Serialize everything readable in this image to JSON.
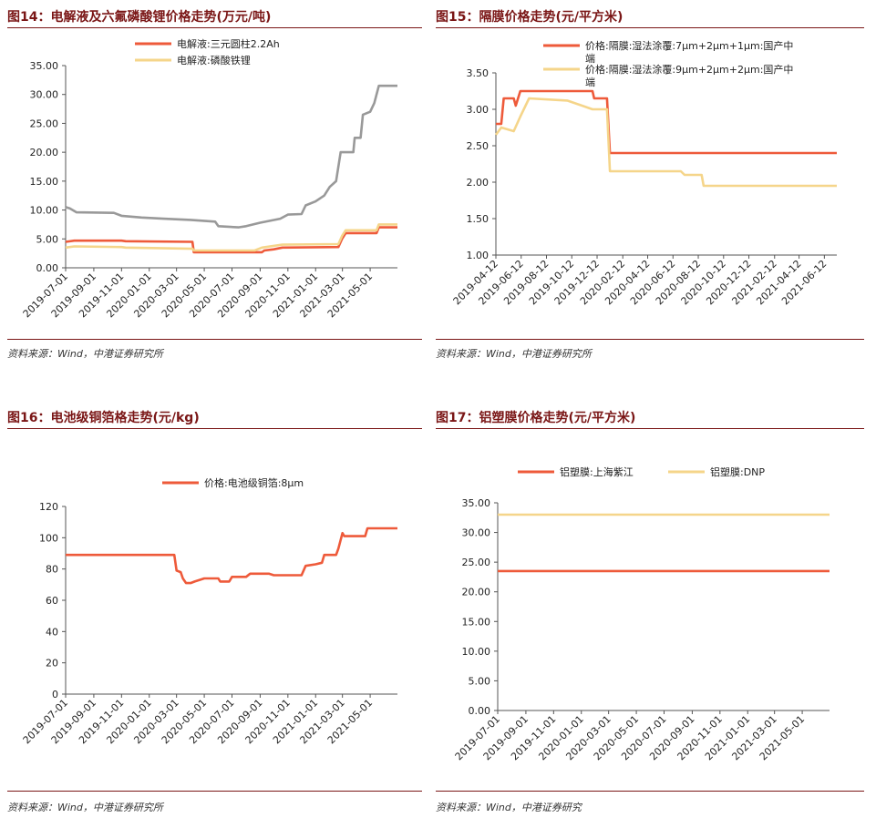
{
  "charts": [
    {
      "title": "图14：电解液及六氟磷酸锂价格走势(万元/吨)",
      "source": "资料来源：Wind，中港证券研究所"
    },
    {
      "title": "图15：隔膜价格走势(元/平方米)",
      "source": "资料来源：Wind，中港证券研究所"
    },
    {
      "title": "图16：电池级铜箔格走势(元/kg)",
      "source": "资料来源：Wind，中港证券研究所"
    },
    {
      "title": "图17：铝塑膜价格走势(元/平方米)",
      "source": "资料来源：Wind，中港证券研究"
    }
  ],
  "chart_data": [
    {
      "type": "line",
      "ylim": [
        0,
        35
      ],
      "yticks": [
        "0.00",
        "5.00",
        "10.00",
        "15.00",
        "20.00",
        "25.00",
        "30.00",
        "35.00"
      ],
      "xlim": [
        "2019-07-01",
        "2021-06-30"
      ],
      "xticks": [
        "2019-07-01",
        "2019-09-01",
        "2019-11-01",
        "2020-01-01",
        "2020-03-01",
        "2020-05-01",
        "2020-07-01",
        "2020-09-01",
        "2020-11-01",
        "2021-01-01",
        "2021-03-01",
        "2021-05-01"
      ],
      "legend_position": "top",
      "grid": false,
      "series": [
        {
          "name": "电解液:三元圆柱2.2Ah",
          "color": "#ee5a3a",
          "points": [
            [
              "2019-07-01",
              4.5
            ],
            [
              "2019-07-20",
              4.7
            ],
            [
              "2019-11-01",
              4.7
            ],
            [
              "2019-11-10",
              4.6
            ],
            [
              "2020-04-05",
              4.5
            ],
            [
              "2020-04-08",
              2.7
            ],
            [
              "2020-09-05",
              2.7
            ],
            [
              "2020-09-10",
              3.0
            ],
            [
              "2020-10-01",
              3.2
            ],
            [
              "2020-10-20",
              3.5
            ],
            [
              "2021-02-20",
              3.6
            ],
            [
              "2021-02-28",
              5.0
            ],
            [
              "2021-03-08",
              6.0
            ],
            [
              "2021-05-15",
              6.0
            ],
            [
              "2021-05-20",
              7.0
            ],
            [
              "2021-06-30",
              7.0
            ]
          ]
        },
        {
          "name": "电解液:磷酸铁锂",
          "color": "#f5d58a",
          "points": [
            [
              "2019-07-01",
              3.5
            ],
            [
              "2019-07-20",
              3.7
            ],
            [
              "2019-11-01",
              3.6
            ],
            [
              "2019-11-10",
              3.5
            ],
            [
              "2020-04-05",
              3.3
            ],
            [
              "2020-04-08",
              3.0
            ],
            [
              "2020-08-20",
              3.0
            ],
            [
              "2020-09-05",
              3.5
            ],
            [
              "2020-10-01",
              3.8
            ],
            [
              "2020-10-20",
              4.0
            ],
            [
              "2021-02-20",
              4.1
            ],
            [
              "2021-02-28",
              5.5
            ],
            [
              "2021-03-08",
              6.5
            ],
            [
              "2021-05-15",
              6.5
            ],
            [
              "2021-05-20",
              7.5
            ],
            [
              "2021-06-30",
              7.5
            ]
          ]
        },
        {
          "name": "",
          "color": "#999999",
          "points": [
            [
              "2019-07-01",
              10.5
            ],
            [
              "2019-07-10",
              10.3
            ],
            [
              "2019-07-25",
              9.6
            ],
            [
              "2019-10-15",
              9.5
            ],
            [
              "2019-11-01",
              9.0
            ],
            [
              "2019-12-15",
              8.7
            ],
            [
              "2020-02-01",
              8.5
            ],
            [
              "2020-04-01",
              8.3
            ],
            [
              "2020-05-25",
              8.0
            ],
            [
              "2020-06-01",
              7.2
            ],
            [
              "2020-07-15",
              7.0
            ],
            [
              "2020-08-01",
              7.2
            ],
            [
              "2020-09-01",
              7.8
            ],
            [
              "2020-10-15",
              8.5
            ],
            [
              "2020-11-01",
              9.2
            ],
            [
              "2020-12-01",
              9.3
            ],
            [
              "2020-12-10",
              10.8
            ],
            [
              "2021-01-01",
              11.5
            ],
            [
              "2021-01-20",
              12.5
            ],
            [
              "2021-02-01",
              14.0
            ],
            [
              "2021-02-15",
              15.0
            ],
            [
              "2021-02-25",
              20.0
            ],
            [
              "2021-03-25",
              20.0
            ],
            [
              "2021-03-28",
              22.5
            ],
            [
              "2021-04-10",
              22.5
            ],
            [
              "2021-04-15",
              26.5
            ],
            [
              "2021-05-01",
              27.0
            ],
            [
              "2021-05-10",
              28.5
            ],
            [
              "2021-05-20",
              31.5
            ],
            [
              "2021-06-30",
              31.5
            ]
          ]
        }
      ]
    },
    {
      "type": "line",
      "ylim": [
        1,
        3.5
      ],
      "yticks": [
        "1.00",
        "1.50",
        "2.00",
        "2.50",
        "3.00",
        "3.50"
      ],
      "xlim": [
        "2019-04-12",
        "2021-07-12"
      ],
      "xticks": [
        "2019-04-12",
        "2019-06-12",
        "2019-08-12",
        "2019-10-12",
        "2019-12-12",
        "2020-02-12",
        "2020-04-12",
        "2020-06-12",
        "2020-08-12",
        "2020-10-12",
        "2020-12-12",
        "2021-02-12",
        "2021-04-12",
        "2021-06-12"
      ],
      "legend_position": "top",
      "grid": false,
      "series": [
        {
          "name": "价格:隔膜:湿法涂覆:7μm+2μm+1μm:国产中端",
          "color": "#ee5a3a",
          "points": [
            [
              "2019-04-12",
              2.8
            ],
            [
              "2019-04-25",
              2.8
            ],
            [
              "2019-05-01",
              3.15
            ],
            [
              "2019-05-25",
              3.15
            ],
            [
              "2019-05-30",
              3.05
            ],
            [
              "2019-06-10",
              3.25
            ],
            [
              "2019-12-01",
              3.25
            ],
            [
              "2019-12-05",
              3.15
            ],
            [
              "2020-01-05",
              3.15
            ],
            [
              "2020-01-12",
              2.4
            ],
            [
              "2021-07-12",
              2.4
            ]
          ]
        },
        {
          "name": "价格:隔膜:湿法涂覆:9μm+2μm+2μm:国产中端",
          "color": "#f5d58a",
          "points": [
            [
              "2019-04-12",
              2.65
            ],
            [
              "2019-04-25",
              2.75
            ],
            [
              "2019-05-25",
              2.7
            ],
            [
              "2019-06-10",
              2.9
            ],
            [
              "2019-07-01",
              3.15
            ],
            [
              "2019-10-01",
              3.12
            ],
            [
              "2019-12-01",
              3.0
            ],
            [
              "2020-01-05",
              3.0
            ],
            [
              "2020-01-12",
              2.15
            ],
            [
              "2020-07-01",
              2.15
            ],
            [
              "2020-07-10",
              2.1
            ],
            [
              "2020-08-20",
              2.1
            ],
            [
              "2020-08-25",
              1.95
            ],
            [
              "2021-07-12",
              1.95
            ]
          ]
        }
      ]
    },
    {
      "type": "line",
      "ylim": [
        0,
        120
      ],
      "yticks": [
        "0",
        "20",
        "40",
        "60",
        "80",
        "100",
        "120"
      ],
      "xlim": [
        "2019-07-01",
        "2021-06-30"
      ],
      "xticks": [
        "2019-07-01",
        "2019-09-01",
        "2019-11-01",
        "2020-01-01",
        "2020-03-01",
        "2020-05-01",
        "2020-07-01",
        "2020-09-01",
        "2020-11-01",
        "2021-01-01",
        "2021-03-01",
        "2021-05-01"
      ],
      "legend_position": "top",
      "grid": false,
      "series": [
        {
          "name": "价格:电池级铜箔:8μm",
          "color": "#ee5a3a",
          "points": [
            [
              "2019-07-01",
              89
            ],
            [
              "2020-02-25",
              89
            ],
            [
              "2020-03-01",
              79
            ],
            [
              "2020-03-10",
              78
            ],
            [
              "2020-03-15",
              74
            ],
            [
              "2020-03-22",
              71
            ],
            [
              "2020-04-01",
              71
            ],
            [
              "2020-04-10",
              72
            ],
            [
              "2020-05-01",
              74
            ],
            [
              "2020-06-01",
              74
            ],
            [
              "2020-06-05",
              72
            ],
            [
              "2020-06-25",
              72
            ],
            [
              "2020-07-01",
              75
            ],
            [
              "2020-08-01",
              75
            ],
            [
              "2020-08-10",
              77
            ],
            [
              "2020-09-20",
              77
            ],
            [
              "2020-10-01",
              76
            ],
            [
              "2020-12-01",
              76
            ],
            [
              "2020-12-10",
              82
            ],
            [
              "2021-01-01",
              83
            ],
            [
              "2021-01-15",
              84
            ],
            [
              "2021-01-20",
              89
            ],
            [
              "2021-02-15",
              89
            ],
            [
              "2021-02-20",
              93
            ],
            [
              "2021-03-01",
              103
            ],
            [
              "2021-03-05",
              101
            ],
            [
              "2021-04-20",
              101
            ],
            [
              "2021-04-25",
              106
            ],
            [
              "2021-06-30",
              106
            ]
          ]
        }
      ]
    },
    {
      "type": "line",
      "ylim": [
        0,
        35
      ],
      "yticks": [
        "0.00",
        "5.00",
        "10.00",
        "15.00",
        "20.00",
        "25.00",
        "30.00",
        "35.00"
      ],
      "xlim": [
        "2019-07-01",
        "2021-06-30"
      ],
      "xticks": [
        "2019-07-01",
        "2019-09-01",
        "2019-11-01",
        "2020-01-01",
        "2020-03-01",
        "2020-05-01",
        "2020-07-01",
        "2020-09-01",
        "2020-11-01",
        "2021-01-01",
        "2021-03-01",
        "2021-05-01"
      ],
      "legend_position": "top",
      "grid": false,
      "series": [
        {
          "name": "铝塑膜:上海紫江",
          "color": "#ee5a3a",
          "points": [
            [
              "2019-07-01",
              23.5
            ],
            [
              "2021-06-30",
              23.5
            ]
          ]
        },
        {
          "name": "铝塑膜:DNP",
          "color": "#f5d58a",
          "points": [
            [
              "2019-07-01",
              33.0
            ],
            [
              "2021-06-30",
              33.0
            ]
          ]
        }
      ]
    }
  ]
}
